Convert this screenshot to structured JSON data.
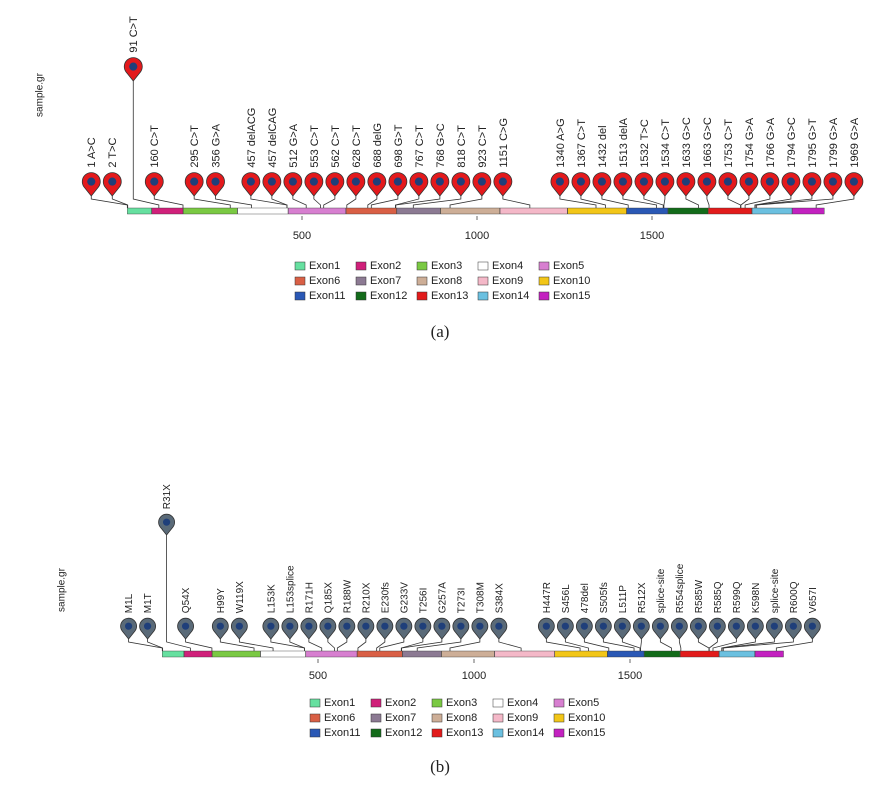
{
  "chart_data": [
    {
      "type": "lollipop",
      "ylabel": "sample.gr",
      "label": "(a)",
      "xlim": [
        0,
        2000
      ],
      "xticks": [
        500,
        1000,
        1500
      ],
      "pin_color": "#e3191c",
      "pin_center_color": "#1f3f7a",
      "domains": [
        {
          "name": "Exon1",
          "start": 1,
          "end": 70,
          "color": "#66e0a0"
        },
        {
          "name": "Exon2",
          "start": 71,
          "end": 160,
          "color": "#d0207a"
        },
        {
          "name": "Exon3",
          "start": 161,
          "end": 315,
          "color": "#7ac943"
        },
        {
          "name": "Exon4",
          "start": 316,
          "end": 460,
          "color": "#ffffff"
        },
        {
          "name": "Exon5",
          "start": 461,
          "end": 625,
          "color": "#d77fd0"
        },
        {
          "name": "Exon6",
          "start": 626,
          "end": 770,
          "color": "#d95f45"
        },
        {
          "name": "Exon7",
          "start": 771,
          "end": 895,
          "color": "#8c7a93"
        },
        {
          "name": "Exon8",
          "start": 896,
          "end": 1065,
          "color": "#cdae97"
        },
        {
          "name": "Exon9",
          "start": 1066,
          "end": 1258,
          "color": "#f4b8c8"
        },
        {
          "name": "Exon10",
          "start": 1259,
          "end": 1427,
          "color": "#f2c618"
        },
        {
          "name": "Exon11",
          "start": 1428,
          "end": 1545,
          "color": "#2a58b5"
        },
        {
          "name": "Exon12",
          "start": 1546,
          "end": 1660,
          "color": "#136b1a"
        },
        {
          "name": "Exon13",
          "start": 1661,
          "end": 1785,
          "color": "#e21b1b"
        },
        {
          "name": "Exon14",
          "start": 1786,
          "end": 1900,
          "color": "#6bc0e0"
        },
        {
          "name": "Exon15",
          "start": 1901,
          "end": 1992,
          "color": "#c321c0"
        }
      ],
      "mutations": {
        "labels": [
          "1 A>C",
          "2 T>C",
          "91 C>T",
          "160 C>T",
          "295 C>T",
          "356 G>A",
          "457 delACG",
          "457 delCAG",
          "512 G>A",
          "553 C>T",
          "562 C>T",
          "628 C>T",
          "688 delG",
          "698 G>T",
          "767 C>T",
          "768 G>C",
          "818 C>T",
          "923 C>T",
          "1151 C>G",
          "1340 A>G",
          "1367 C>T",
          "1432 del",
          "1513 delA",
          "1532 T>C",
          "1534 C>T",
          "1633 G>C",
          "1663 G>C",
          "1753 C>T",
          "1754 G>A",
          "1766 G>A",
          "1794 G>C",
          "1795 G>T",
          "1799 G>A",
          "1969 G>A"
        ],
        "positions": [
          1,
          2,
          91,
          160,
          295,
          356,
          457,
          457,
          512,
          553,
          562,
          628,
          688,
          698,
          767,
          768,
          818,
          923,
          1151,
          1340,
          1367,
          1432,
          1513,
          1532,
          1534,
          1633,
          1663,
          1753,
          1754,
          1766,
          1794,
          1795,
          1799,
          1969
        ],
        "scores": [
          1,
          1,
          2,
          1,
          1,
          1,
          1,
          1,
          1,
          1,
          1,
          1,
          1,
          1,
          1,
          1,
          1,
          1,
          1,
          1,
          1,
          1,
          1,
          1,
          1,
          1,
          1,
          1,
          1,
          1,
          1,
          1,
          1,
          1
        ]
      }
    },
    {
      "type": "lollipop",
      "ylabel": "sample.gr",
      "label": "(b)",
      "xlim": [
        0,
        2000
      ],
      "xticks": [
        500,
        1000,
        1500
      ],
      "pin_color": "#5a6a78",
      "pin_center_color": "#1f3f7a",
      "domains": [
        {
          "name": "Exon1",
          "start": 1,
          "end": 70,
          "color": "#66e0a0"
        },
        {
          "name": "Exon2",
          "start": 71,
          "end": 160,
          "color": "#d0207a"
        },
        {
          "name": "Exon3",
          "start": 161,
          "end": 315,
          "color": "#7ac943"
        },
        {
          "name": "Exon4",
          "start": 316,
          "end": 460,
          "color": "#ffffff"
        },
        {
          "name": "Exon5",
          "start": 461,
          "end": 625,
          "color": "#d77fd0"
        },
        {
          "name": "Exon6",
          "start": 626,
          "end": 770,
          "color": "#d95f45"
        },
        {
          "name": "Exon7",
          "start": 771,
          "end": 895,
          "color": "#8c7a93"
        },
        {
          "name": "Exon8",
          "start": 896,
          "end": 1065,
          "color": "#cdae97"
        },
        {
          "name": "Exon9",
          "start": 1066,
          "end": 1258,
          "color": "#f4b8c8"
        },
        {
          "name": "Exon10",
          "start": 1259,
          "end": 1427,
          "color": "#f2c618"
        },
        {
          "name": "Exon11",
          "start": 1428,
          "end": 1545,
          "color": "#2a58b5"
        },
        {
          "name": "Exon12",
          "start": 1546,
          "end": 1660,
          "color": "#136b1a"
        },
        {
          "name": "Exon13",
          "start": 1661,
          "end": 1785,
          "color": "#e21b1b"
        },
        {
          "name": "Exon14",
          "start": 1786,
          "end": 1900,
          "color": "#6bc0e0"
        },
        {
          "name": "Exon15",
          "start": 1901,
          "end": 1992,
          "color": "#c321c0"
        }
      ],
      "mutations": {
        "labels": [
          "M1L",
          "M1T",
          "R31X",
          "Q54X",
          "H99Y",
          "W119X",
          "L153K",
          "L153splice",
          "R171H",
          "Q185X",
          "R188W",
          "R210X",
          "E230fs",
          "G233V",
          "T256I",
          "G257A",
          "T273I",
          "T308M",
          "S384X",
          "H447R",
          "S456L",
          "478del",
          "S505fs",
          "L511P",
          "R512X",
          "splice-site",
          "R554splice",
          "R585W",
          "R585Q",
          "R599Q",
          "K598N",
          "splice-site",
          "R600Q",
          "V657I"
        ],
        "positions": [
          1,
          2,
          91,
          160,
          295,
          356,
          457,
          457,
          512,
          553,
          562,
          628,
          688,
          698,
          767,
          768,
          818,
          923,
          1151,
          1340,
          1367,
          1432,
          1513,
          1532,
          1534,
          1633,
          1663,
          1753,
          1754,
          1766,
          1794,
          1795,
          1799,
          1969
        ],
        "scores": [
          1,
          1,
          2,
          1,
          1,
          1,
          1,
          1,
          1,
          1,
          1,
          1,
          1,
          1,
          1,
          1,
          1,
          1,
          1,
          1,
          1,
          1,
          1,
          1,
          1,
          1,
          1,
          1,
          1,
          1,
          1,
          1,
          1,
          1
        ]
      }
    }
  ]
}
